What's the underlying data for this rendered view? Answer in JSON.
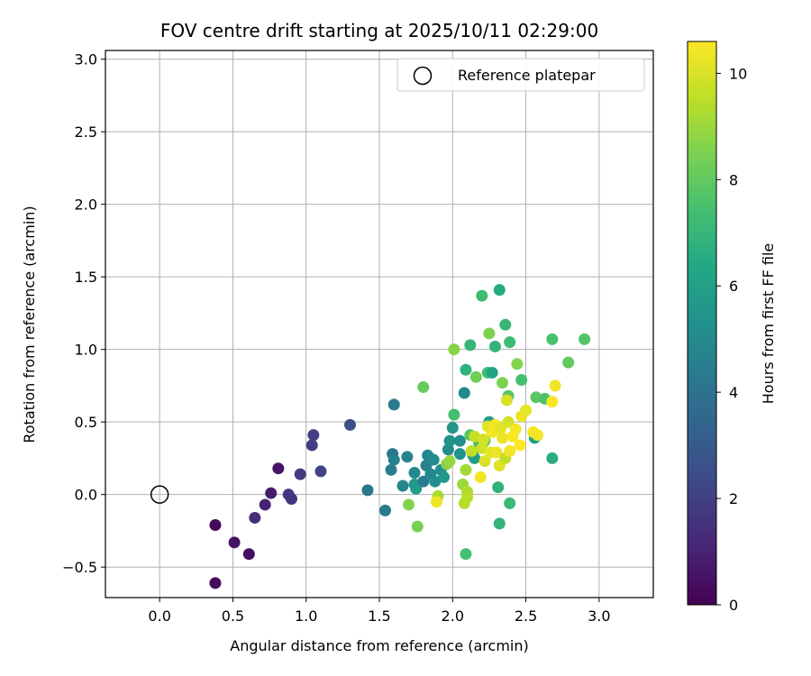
{
  "chart_data": {
    "type": "scatter",
    "title": "FOV centre drift starting at 2025/10/11 02:29:00",
    "xlabel": "Angular distance from reference (arcmin)",
    "ylabel": "Rotation from reference (arcmin)",
    "xlim": [
      -0.37,
      3.37
    ],
    "ylim": [
      -0.71,
      3.06
    ],
    "xticks": [
      0.0,
      0.5,
      1.0,
      1.5,
      2.0,
      2.5,
      3.0
    ],
    "yticks": [
      -0.5,
      0.0,
      0.5,
      1.0,
      1.5,
      2.0,
      2.5,
      3.0
    ],
    "xtick_labels": [
      "0.0",
      "0.5",
      "1.0",
      "1.5",
      "2.0",
      "2.5",
      "3.0"
    ],
    "ytick_labels": [
      "−0.5",
      "0.0",
      "0.5",
      "1.0",
      "1.5",
      "2.0",
      "2.5",
      "3.0"
    ],
    "grid": true,
    "legend": {
      "label": "Reference platepar",
      "position": "top-right"
    },
    "reference_point": {
      "x": 0.0,
      "y": 0.0
    },
    "colorbar": {
      "label": "Hours from first FF file",
      "min": 0,
      "max": 10.6,
      "ticks": [
        0,
        2,
        4,
        6,
        8,
        10
      ],
      "tick_labels": [
        "0",
        "2",
        "4",
        "6",
        "8",
        "10"
      ],
      "colormap": "viridis"
    },
    "points": [
      {
        "x": 0.38,
        "y": -0.61,
        "h": 0.3
      },
      {
        "x": 0.38,
        "y": -0.21,
        "h": 0.2
      },
      {
        "x": 0.51,
        "y": -0.33,
        "h": 0.5
      },
      {
        "x": 0.61,
        "y": -0.41,
        "h": 0.4
      },
      {
        "x": 0.65,
        "y": -0.16,
        "h": 1.4
      },
      {
        "x": 0.72,
        "y": -0.07,
        "h": 1.0
      },
      {
        "x": 0.76,
        "y": 0.01,
        "h": 0.8
      },
      {
        "x": 0.81,
        "y": 0.18,
        "h": 0.6
      },
      {
        "x": 0.88,
        "y": 0.0,
        "h": 1.7
      },
      {
        "x": 0.9,
        "y": -0.03,
        "h": 1.6
      },
      {
        "x": 0.96,
        "y": 0.14,
        "h": 1.8
      },
      {
        "x": 1.04,
        "y": 0.34,
        "h": 1.9
      },
      {
        "x": 1.05,
        "y": 0.41,
        "h": 2.0
      },
      {
        "x": 1.1,
        "y": 0.16,
        "h": 2.1
      },
      {
        "x": 1.3,
        "y": 0.48,
        "h": 2.5
      },
      {
        "x": 1.42,
        "y": 0.03,
        "h": 4.2
      },
      {
        "x": 1.54,
        "y": -0.11,
        "h": 4.4
      },
      {
        "x": 1.58,
        "y": 0.17,
        "h": 4.5
      },
      {
        "x": 1.59,
        "y": 0.28,
        "h": 4.3
      },
      {
        "x": 1.6,
        "y": 0.62,
        "h": 4.4
      },
      {
        "x": 1.6,
        "y": 0.24,
        "h": 4.6
      },
      {
        "x": 1.66,
        "y": 0.06,
        "h": 4.8
      },
      {
        "x": 1.69,
        "y": 0.26,
        "h": 4.7
      },
      {
        "x": 1.74,
        "y": 0.15,
        "h": 4.9
      },
      {
        "x": 1.75,
        "y": 0.04,
        "h": 5.9
      },
      {
        "x": 1.74,
        "y": 0.07,
        "h": 5.7
      },
      {
        "x": 1.8,
        "y": 0.09,
        "h": 4.5
      },
      {
        "x": 1.82,
        "y": 0.2,
        "h": 4.6
      },
      {
        "x": 1.83,
        "y": 0.27,
        "h": 4.8
      },
      {
        "x": 1.85,
        "y": 0.14,
        "h": 4.9
      },
      {
        "x": 1.87,
        "y": 0.24,
        "h": 5.0
      },
      {
        "x": 1.88,
        "y": 0.09,
        "h": 5.2
      },
      {
        "x": 1.92,
        "y": 0.17,
        "h": 5.3
      },
      {
        "x": 1.94,
        "y": 0.12,
        "h": 5.6
      },
      {
        "x": 1.97,
        "y": 0.31,
        "h": 5.1
      },
      {
        "x": 1.98,
        "y": 0.37,
        "h": 5.4
      },
      {
        "x": 2.0,
        "y": 0.46,
        "h": 5.5
      },
      {
        "x": 2.01,
        "y": 0.55,
        "h": 7.4
      },
      {
        "x": 2.05,
        "y": 0.28,
        "h": 5.4
      },
      {
        "x": 2.05,
        "y": 0.37,
        "h": 5.2
      },
      {
        "x": 2.08,
        "y": 0.7,
        "h": 5.0
      },
      {
        "x": 2.09,
        "y": 0.86,
        "h": 6.8
      },
      {
        "x": 2.09,
        "y": -0.41,
        "h": 7.4
      },
      {
        "x": 2.12,
        "y": 1.03,
        "h": 7.0
      },
      {
        "x": 2.12,
        "y": 0.41,
        "h": 7.8
      },
      {
        "x": 2.14,
        "y": 0.27,
        "h": 5.6
      },
      {
        "x": 2.15,
        "y": 0.25,
        "h": 5.9
      },
      {
        "x": 2.16,
        "y": 0.81,
        "h": 8.3
      },
      {
        "x": 2.18,
        "y": 0.36,
        "h": 7.3
      },
      {
        "x": 2.2,
        "y": 1.37,
        "h": 7.2
      },
      {
        "x": 2.22,
        "y": 0.37,
        "h": 8.2
      },
      {
        "x": 2.24,
        "y": 0.84,
        "h": 7.3
      },
      {
        "x": 2.25,
        "y": 1.11,
        "h": 8.5
      },
      {
        "x": 2.25,
        "y": 0.5,
        "h": 6.0
      },
      {
        "x": 2.27,
        "y": 0.84,
        "h": 6.2
      },
      {
        "x": 2.29,
        "y": 1.02,
        "h": 6.9
      },
      {
        "x": 2.31,
        "y": 0.05,
        "h": 6.8
      },
      {
        "x": 2.32,
        "y": -0.2,
        "h": 6.9
      },
      {
        "x": 2.32,
        "y": 1.41,
        "h": 6.5
      },
      {
        "x": 2.34,
        "y": 0.77,
        "h": 8.5
      },
      {
        "x": 2.36,
        "y": 1.17,
        "h": 7.0
      },
      {
        "x": 2.38,
        "y": 0.68,
        "h": 7.8
      },
      {
        "x": 2.39,
        "y": 1.05,
        "h": 7.3
      },
      {
        "x": 2.39,
        "y": -0.06,
        "h": 7.1
      },
      {
        "x": 2.44,
        "y": 0.9,
        "h": 8.6
      },
      {
        "x": 2.47,
        "y": 0.79,
        "h": 7.4
      },
      {
        "x": 2.56,
        "y": 0.39,
        "h": 6.0
      },
      {
        "x": 2.57,
        "y": 0.67,
        "h": 7.9
      },
      {
        "x": 2.63,
        "y": 0.66,
        "h": 7.6
      },
      {
        "x": 2.68,
        "y": 1.07,
        "h": 7.5
      },
      {
        "x": 2.68,
        "y": 0.25,
        "h": 6.6
      },
      {
        "x": 2.79,
        "y": 0.91,
        "h": 8.0
      },
      {
        "x": 2.9,
        "y": 1.07,
        "h": 7.7
      },
      {
        "x": 1.8,
        "y": 0.74,
        "h": 8.1
      },
      {
        "x": 1.76,
        "y": -0.22,
        "h": 8.4
      },
      {
        "x": 1.7,
        "y": -0.07,
        "h": 8.6
      },
      {
        "x": 2.01,
        "y": 1.0,
        "h": 8.7
      },
      {
        "x": 1.96,
        "y": 0.21,
        "h": 8.7
      },
      {
        "x": 1.98,
        "y": 0.23,
        "h": 8.9
      },
      {
        "x": 1.9,
        "y": -0.01,
        "h": 9.2
      },
      {
        "x": 1.89,
        "y": -0.05,
        "h": 10.4
      },
      {
        "x": 2.07,
        "y": 0.07,
        "h": 9.0
      },
      {
        "x": 2.09,
        "y": 0.17,
        "h": 9.1
      },
      {
        "x": 2.1,
        "y": 0.02,
        "h": 9.3
      },
      {
        "x": 2.1,
        "y": -0.02,
        "h": 9.5
      },
      {
        "x": 2.08,
        "y": -0.06,
        "h": 9.4
      },
      {
        "x": 2.13,
        "y": 0.3,
        "h": 9.6
      },
      {
        "x": 2.15,
        "y": 0.4,
        "h": 9.7
      },
      {
        "x": 2.19,
        "y": 0.12,
        "h": 10.4
      },
      {
        "x": 2.2,
        "y": 0.32,
        "h": 9.8
      },
      {
        "x": 2.21,
        "y": 0.38,
        "h": 9.9
      },
      {
        "x": 2.22,
        "y": 0.23,
        "h": 10.0
      },
      {
        "x": 2.24,
        "y": 0.47,
        "h": 10.1
      },
      {
        "x": 2.26,
        "y": 0.29,
        "h": 10.2
      },
      {
        "x": 2.27,
        "y": 0.43,
        "h": 10.4
      },
      {
        "x": 2.29,
        "y": 0.48,
        "h": 10.5
      },
      {
        "x": 2.3,
        "y": 0.29,
        "h": 10.3
      },
      {
        "x": 2.32,
        "y": 0.2,
        "h": 10.1
      },
      {
        "x": 2.33,
        "y": 0.46,
        "h": 10.2
      },
      {
        "x": 2.34,
        "y": 0.39,
        "h": 10.3
      },
      {
        "x": 2.36,
        "y": 0.25,
        "h": 9.6
      },
      {
        "x": 2.37,
        "y": 0.65,
        "h": 10.0
      },
      {
        "x": 2.38,
        "y": 0.5,
        "h": 9.9
      },
      {
        "x": 2.39,
        "y": 0.3,
        "h": 10.4
      },
      {
        "x": 2.41,
        "y": 0.4,
        "h": 10.5
      },
      {
        "x": 2.43,
        "y": 0.45,
        "h": 10.5
      },
      {
        "x": 2.46,
        "y": 0.34,
        "h": 10.6
      },
      {
        "x": 2.47,
        "y": 0.54,
        "h": 10.3
      },
      {
        "x": 2.5,
        "y": 0.58,
        "h": 10.2
      },
      {
        "x": 2.55,
        "y": 0.43,
        "h": 10.5
      },
      {
        "x": 2.58,
        "y": 0.41,
        "h": 10.4
      },
      {
        "x": 2.68,
        "y": 0.64,
        "h": 10.5
      },
      {
        "x": 2.7,
        "y": 0.75,
        "h": 10.4
      }
    ]
  }
}
